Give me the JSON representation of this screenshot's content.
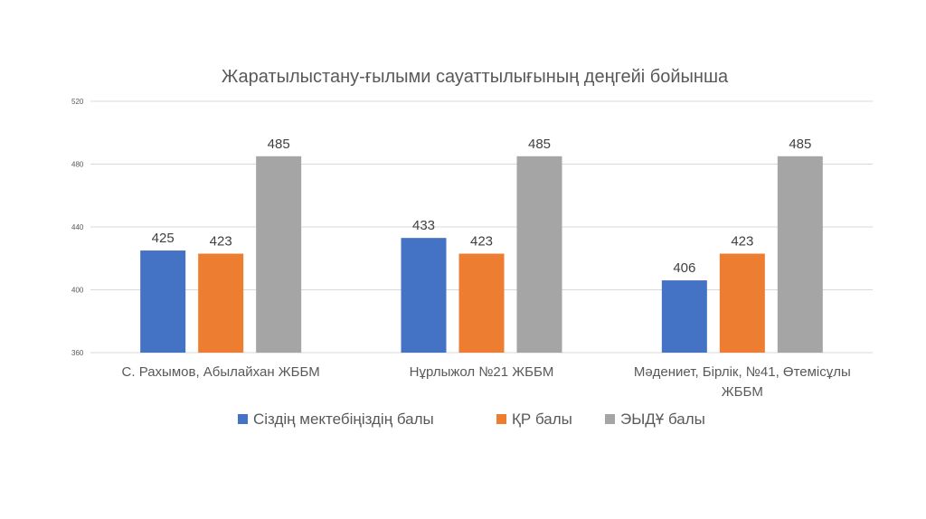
{
  "chart_data": {
    "type": "bar",
    "title": "Жаратылыстану-ғылыми сауаттылығының деңгейі бойынша",
    "categories": [
      [
        "С. Рахымов, Абылайхан ЖББМ"
      ],
      [
        "Нұрлыжол №21 ЖББМ"
      ],
      [
        "Мәдениет, Бірлік, №41, Өтемісұлы",
        "ЖББМ"
      ]
    ],
    "series": [
      {
        "name": "Сіздің мектебіңіздің балы",
        "color": "#4472c4",
        "values": [
          425,
          433,
          406
        ]
      },
      {
        "name": "ҚР балы",
        "color": "#ed7d31",
        "values": [
          423,
          423,
          423
        ]
      },
      {
        "name": "ЭЫДҰ балы",
        "color": "#a5a5a5",
        "values": [
          485,
          485,
          485
        ]
      }
    ],
    "ylim": [
      360,
      520
    ],
    "yticks": [
      360,
      400,
      440,
      480,
      520
    ],
    "grid": true,
    "legend_position": "bottom"
  }
}
